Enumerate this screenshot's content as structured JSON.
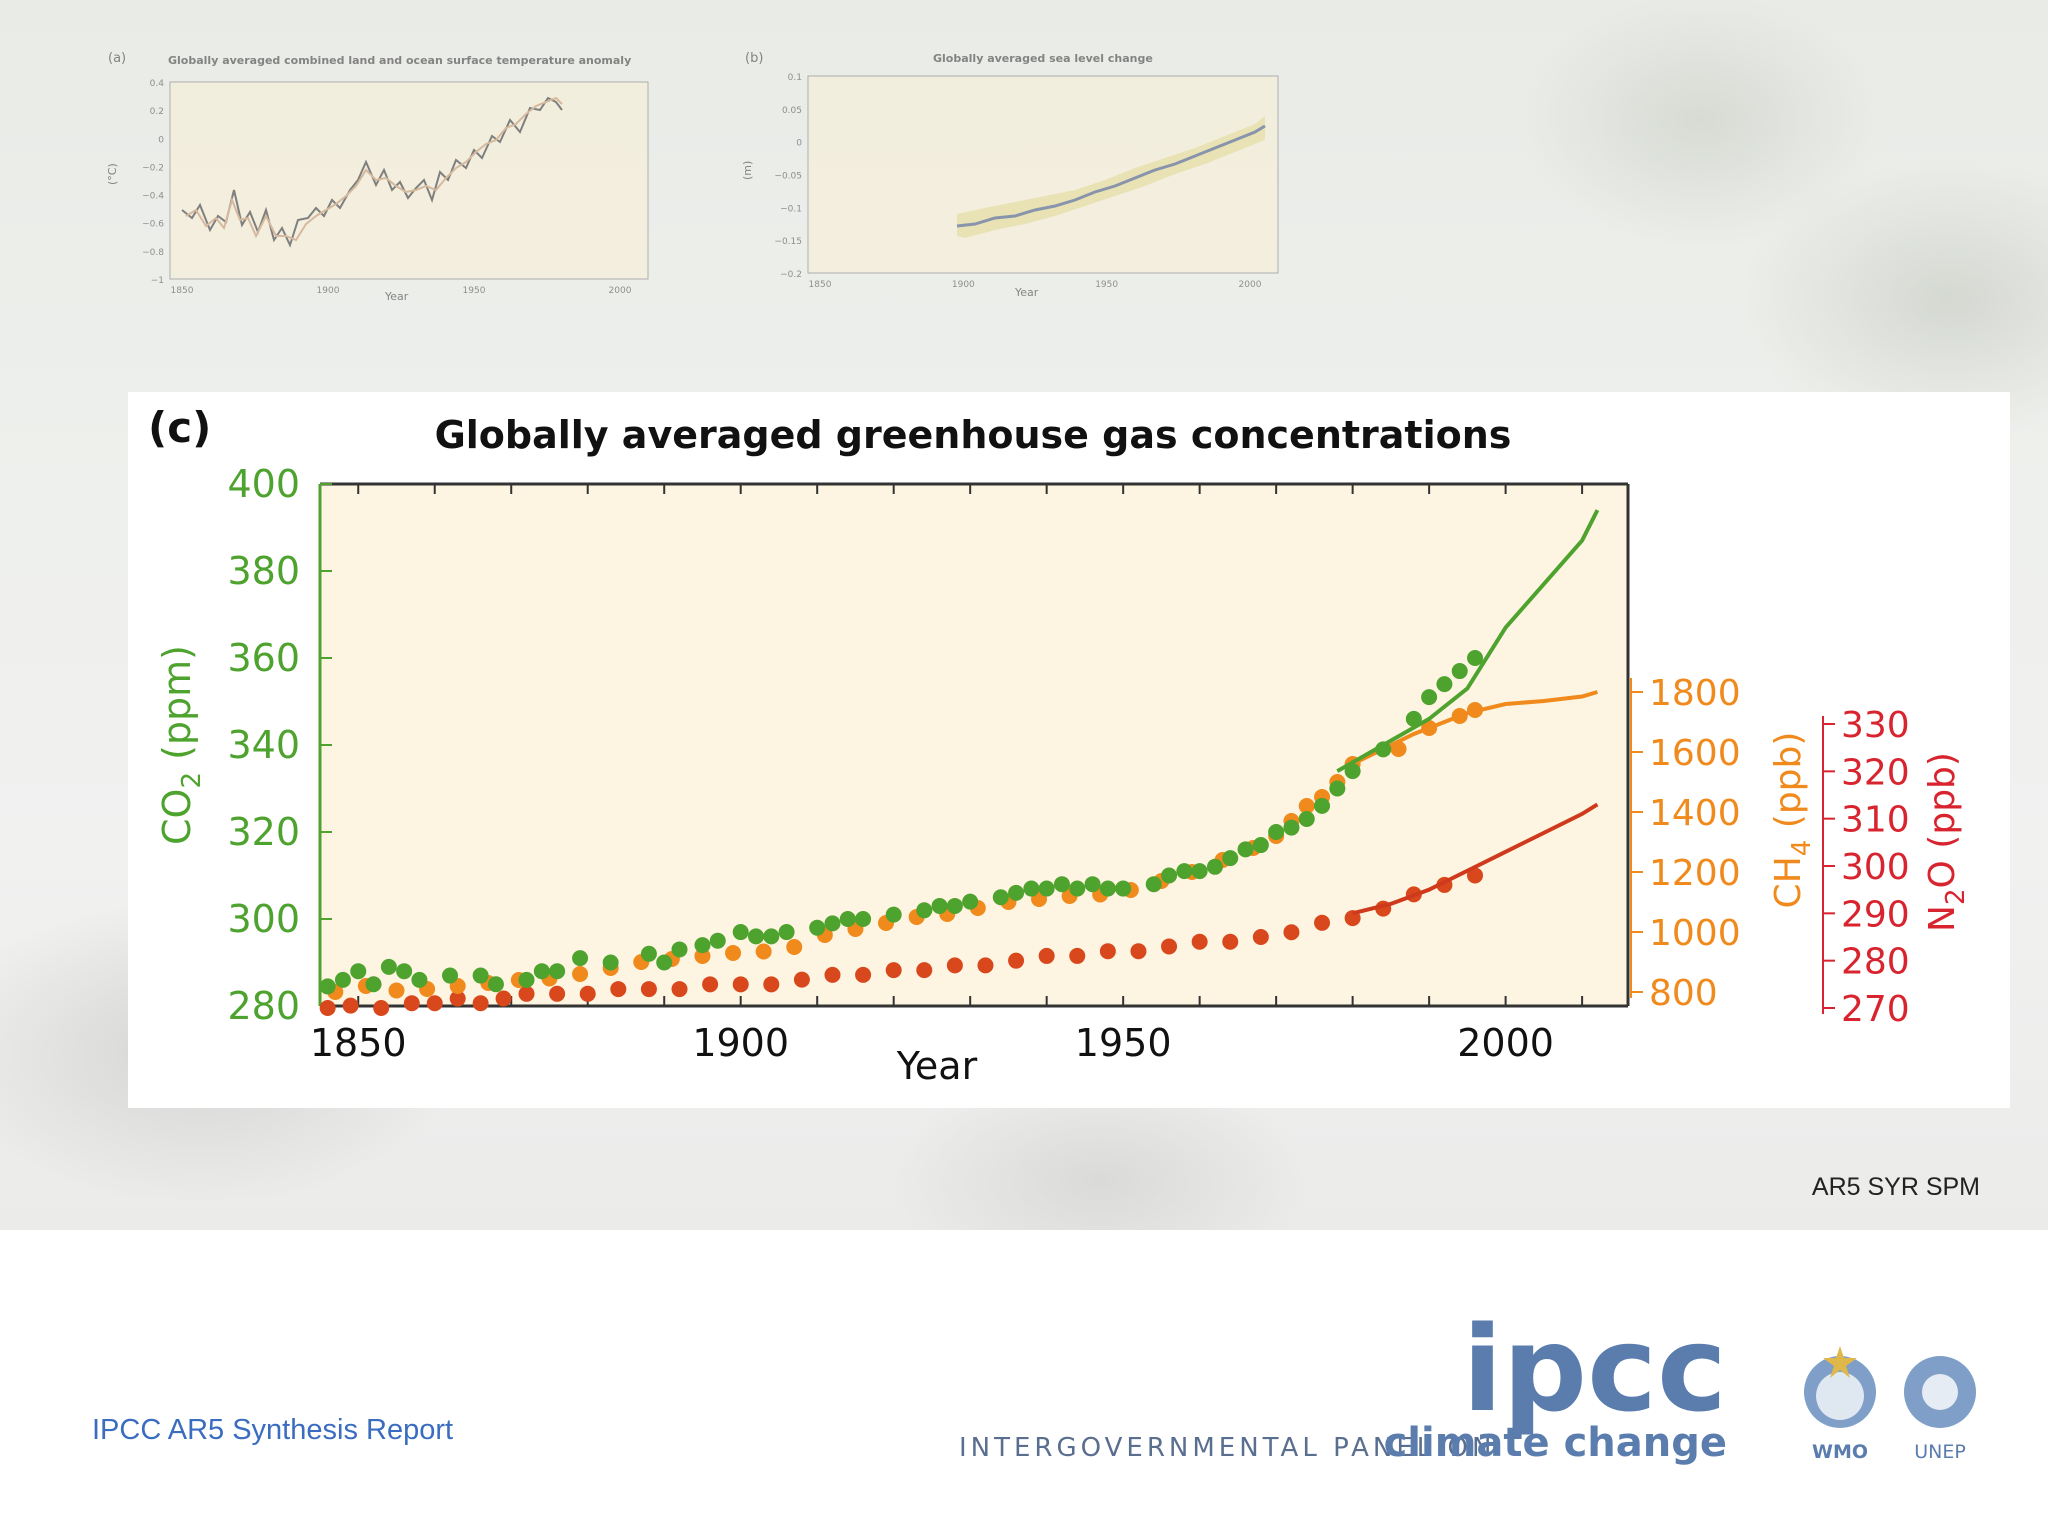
{
  "panel_a": {
    "letter": "(a)",
    "title": "Globally averaged combined land and ocean surface temperature anomaly",
    "ylabel": "(°C)",
    "xlabel": "Year",
    "yticks": [
      "0.4",
      "0.2",
      "0",
      "−0.2",
      "−0.4",
      "−0.6",
      "−0.8",
      "−1"
    ],
    "xticks": [
      "1850",
      "1900",
      "1950",
      "2000"
    ]
  },
  "panel_b": {
    "letter": "(b)",
    "title": "Globally averaged sea level change",
    "ylabel": "(m)",
    "xlabel": "Year",
    "yticks": [
      "0.1",
      "0.05",
      "0",
      "−0.05",
      "−0.1",
      "−0.15",
      "−0.2"
    ],
    "xticks": [
      "1850",
      "1900",
      "1950",
      "2000"
    ]
  },
  "chart_data": {
    "type": "scatter",
    "letter": "(c)",
    "title": "Globally averaged greenhouse gas concentrations",
    "xlabel": "Year",
    "xlim": [
      1845,
      2016
    ],
    "xticks": [
      1850,
      1900,
      1950,
      2000
    ],
    "grid": false,
    "axes": {
      "co2": {
        "label": "CO",
        "sub": "2",
        "unit": " (ppm)",
        "range": [
          280,
          400
        ],
        "ticks": [
          280,
          300,
          320,
          340,
          360,
          380,
          400
        ],
        "color": "#4ea22e"
      },
      "ch4": {
        "label": "CH",
        "sub": "4",
        "unit": " (ppb)",
        "range": [
          800,
          1800
        ],
        "ticks": [
          800,
          1000,
          1200,
          1400,
          1600,
          1800
        ],
        "color": "#f08a1c"
      },
      "n2o": {
        "label": "N",
        "sub": "2",
        "label2": "O",
        "unit": " (ppb)",
        "range": [
          270,
          330
        ],
        "ticks": [
          270,
          280,
          290,
          300,
          310,
          320,
          330
        ],
        "color": "#d8242e"
      }
    },
    "series": [
      {
        "key": "co2",
        "axis": "co2",
        "color": "#4ea22e",
        "dot_color": "#4ea22e",
        "points": [
          [
            1846,
            284.5
          ],
          [
            1848,
            286
          ],
          [
            1850,
            288
          ],
          [
            1852,
            285
          ],
          [
            1854,
            289
          ],
          [
            1856,
            288
          ],
          [
            1858,
            286
          ],
          [
            1862,
            287
          ],
          [
            1866,
            287
          ],
          [
            1868,
            285
          ],
          [
            1872,
            286
          ],
          [
            1874,
            288
          ],
          [
            1876,
            288
          ],
          [
            1879,
            291
          ],
          [
            1883,
            290
          ],
          [
            1888,
            292
          ],
          [
            1890,
            290
          ],
          [
            1892,
            293
          ],
          [
            1895,
            294
          ],
          [
            1897,
            295
          ],
          [
            1900,
            297
          ],
          [
            1902,
            296
          ],
          [
            1904,
            296
          ],
          [
            1906,
            297
          ],
          [
            1910,
            298
          ],
          [
            1912,
            299
          ],
          [
            1914,
            300
          ],
          [
            1916,
            300
          ],
          [
            1920,
            301
          ],
          [
            1924,
            302
          ],
          [
            1926,
            303
          ],
          [
            1928,
            303
          ],
          [
            1930,
            304
          ],
          [
            1934,
            305
          ],
          [
            1936,
            306
          ],
          [
            1938,
            307
          ],
          [
            1940,
            307
          ],
          [
            1942,
            308
          ],
          [
            1944,
            307
          ],
          [
            1946,
            308
          ],
          [
            1948,
            307
          ],
          [
            1950,
            307
          ],
          [
            1954,
            308
          ],
          [
            1956,
            310
          ],
          [
            1958,
            311
          ],
          [
            1960,
            311
          ],
          [
            1962,
            312
          ],
          [
            1964,
            314
          ],
          [
            1966,
            316
          ],
          [
            1968,
            317
          ],
          [
            1970,
            320
          ],
          [
            1972,
            321
          ],
          [
            1974,
            323
          ],
          [
            1976,
            326
          ],
          [
            1978,
            330
          ],
          [
            1980,
            334
          ],
          [
            1984,
            339
          ],
          [
            1988,
            346
          ],
          [
            1990,
            351
          ],
          [
            1992,
            354
          ],
          [
            1994,
            357
          ],
          [
            1996,
            360
          ]
        ],
        "line": [
          [
            1978,
            334
          ],
          [
            1985,
            341
          ],
          [
            1990,
            346
          ],
          [
            1995,
            353
          ],
          [
            2000,
            367
          ],
          [
            2005,
            377
          ],
          [
            2010,
            387
          ],
          [
            2012,
            394
          ]
        ]
      },
      {
        "key": "ch4",
        "axis": "ch4",
        "color": "#f08a1c",
        "dot_color": "#f08a1c",
        "points": [
          [
            1847,
            800
          ],
          [
            1851,
            820
          ],
          [
            1855,
            805
          ],
          [
            1859,
            810
          ],
          [
            1863,
            820
          ],
          [
            1867,
            830
          ],
          [
            1871,
            840
          ],
          [
            1875,
            845
          ],
          [
            1879,
            860
          ],
          [
            1883,
            880
          ],
          [
            1887,
            900
          ],
          [
            1891,
            910
          ],
          [
            1895,
            920
          ],
          [
            1899,
            930
          ],
          [
            1903,
            935
          ],
          [
            1907,
            950
          ],
          [
            1911,
            990
          ],
          [
            1915,
            1010
          ],
          [
            1919,
            1030
          ],
          [
            1923,
            1050
          ],
          [
            1927,
            1060
          ],
          [
            1931,
            1080
          ],
          [
            1935,
            1100
          ],
          [
            1939,
            1110
          ],
          [
            1943,
            1120
          ],
          [
            1947,
            1125
          ],
          [
            1951,
            1140
          ],
          [
            1955,
            1170
          ],
          [
            1959,
            1200
          ],
          [
            1963,
            1240
          ],
          [
            1967,
            1280
          ],
          [
            1970,
            1320
          ],
          [
            1972,
            1370
          ],
          [
            1974,
            1420
          ],
          [
            1976,
            1450
          ],
          [
            1978,
            1500
          ],
          [
            1980,
            1560
          ],
          [
            1986,
            1610
          ],
          [
            1990,
            1680
          ],
          [
            1994,
            1720
          ],
          [
            1996,
            1740
          ]
        ],
        "line": [
          [
            1980,
            1560
          ],
          [
            1988,
            1660
          ],
          [
            1995,
            1730
          ],
          [
            2000,
            1760
          ],
          [
            2005,
            1770
          ],
          [
            2010,
            1785
          ],
          [
            2012,
            1800
          ]
        ]
      },
      {
        "key": "n2o",
        "axis": "n2o",
        "color": "#cf3a1c",
        "dot_color": "#d8481c",
        "points": [
          [
            1846,
            270
          ],
          [
            1849,
            270.5
          ],
          [
            1853,
            270
          ],
          [
            1857,
            271
          ],
          [
            1860,
            271
          ],
          [
            1863,
            272
          ],
          [
            1866,
            271
          ],
          [
            1869,
            272
          ],
          [
            1872,
            273
          ],
          [
            1876,
            273
          ],
          [
            1880,
            273
          ],
          [
            1884,
            274
          ],
          [
            1888,
            274
          ],
          [
            1892,
            274
          ],
          [
            1896,
            275
          ],
          [
            1900,
            275
          ],
          [
            1904,
            275
          ],
          [
            1908,
            276
          ],
          [
            1912,
            277
          ],
          [
            1916,
            277
          ],
          [
            1920,
            278
          ],
          [
            1924,
            278
          ],
          [
            1928,
            279
          ],
          [
            1932,
            279
          ],
          [
            1936,
            280
          ],
          [
            1940,
            281
          ],
          [
            1944,
            281
          ],
          [
            1948,
            282
          ],
          [
            1952,
            282
          ],
          [
            1956,
            283
          ],
          [
            1960,
            284
          ],
          [
            1964,
            284
          ],
          [
            1968,
            285
          ],
          [
            1972,
            286
          ],
          [
            1976,
            288
          ],
          [
            1980,
            289
          ],
          [
            1984,
            291
          ],
          [
            1988,
            294
          ],
          [
            1992,
            296
          ],
          [
            1996,
            298
          ]
        ],
        "line": [
          [
            1980,
            290
          ],
          [
            1985,
            292
          ],
          [
            1990,
            295
          ],
          [
            1995,
            299
          ],
          [
            2000,
            303
          ],
          [
            2005,
            307
          ],
          [
            2010,
            311
          ],
          [
            2012,
            313
          ]
        ]
      }
    ]
  },
  "footnote": "AR5 SYR SPM",
  "report_link": "IPCC AR5 Synthesis Report",
  "logo": {
    "wordmark": "ipcc",
    "tagline_1": "INTERGOVERNMENTAL PANEL ON",
    "tagline_2": "climate change",
    "wmo": "WMO",
    "unep": "UNEP"
  }
}
